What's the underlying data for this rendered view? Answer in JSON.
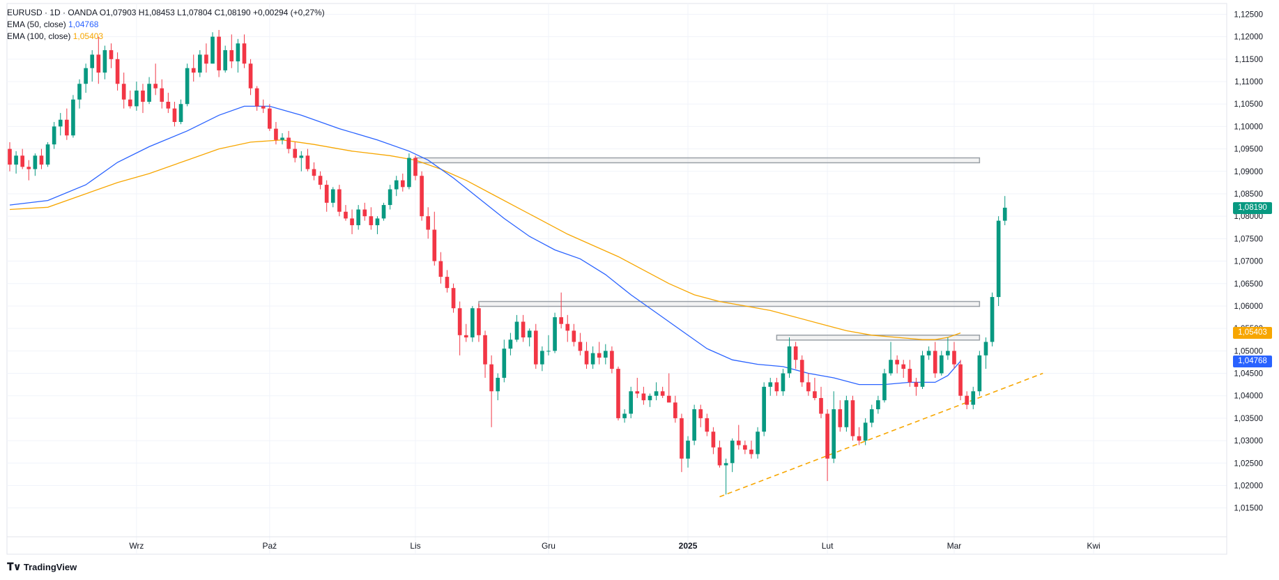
{
  "legend": {
    "symbol_line": "EURUSD · 1D · OANDA",
    "open": "O1,07903",
    "high": "H1,08453",
    "low": "L1,07804",
    "close": "C1,08190",
    "change": "+0,00294 (+0,27%)",
    "ema50_label": "EMA (50, close)",
    "ema50_value": "1,04768",
    "ema100_label": "EMA (100, close)",
    "ema100_value": "1,05403"
  },
  "brand": {
    "name": "TradingView",
    "icon": "tradingview-logo-icon"
  },
  "colors": {
    "up": "#089981",
    "down": "#f23645",
    "ema50": "#2962ff",
    "ema100": "#f7a600",
    "grid": "#f0f3fa"
  },
  "price_tags": {
    "last": {
      "label": "1,08190",
      "color": "#089981"
    },
    "ema100": {
      "label": "1,05403",
      "color": "#f7a600"
    },
    "ema50": {
      "label": "1,04768",
      "color": "#2962ff"
    }
  },
  "chart_data": {
    "type": "candlestick",
    "symbol": "EURUSD",
    "timeframe": "1D",
    "ylim": [
      1.012,
      1.126
    ],
    "y_ticks": [
      "1,12500",
      "1,12000",
      "1,11500",
      "1,11000",
      "1,10500",
      "1,10000",
      "1,09500",
      "1,09000",
      "1,08500",
      "1,08000",
      "1,07500",
      "1,07000",
      "1,06500",
      "1,06000",
      "1,05500",
      "1,05000",
      "1,04500",
      "1,04000",
      "1,03500",
      "1,03000",
      "1,02500",
      "1,02000",
      "1,01500"
    ],
    "x_ticks": [
      {
        "label": "Wrz",
        "index": 20,
        "bold": false
      },
      {
        "label": "Paź",
        "index": 41,
        "bold": false
      },
      {
        "label": "Lis",
        "index": 64,
        "bold": false
      },
      {
        "label": "Gru",
        "index": 85,
        "bold": false
      },
      {
        "label": "2025",
        "index": 107,
        "bold": true
      },
      {
        "label": "Lut",
        "index": 129,
        "bold": false
      },
      {
        "label": "Mar",
        "index": 149,
        "bold": false
      },
      {
        "label": "Kwi",
        "index": 171,
        "bold": false
      }
    ],
    "x_span": 192,
    "candles": [
      [
        1.095,
        1.0965,
        1.09,
        1.0915
      ],
      [
        1.0915,
        1.0945,
        1.0895,
        1.0935
      ],
      [
        1.0935,
        1.095,
        1.0905,
        1.091
      ],
      [
        1.091,
        1.0925,
        1.088,
        1.0905
      ],
      [
        1.0905,
        1.094,
        1.089,
        1.0935
      ],
      [
        1.0935,
        1.095,
        1.0905,
        1.0915
      ],
      [
        1.0915,
        1.0965,
        1.091,
        1.096
      ],
      [
        1.096,
        1.101,
        1.095,
        1.1
      ],
      [
        1.1,
        1.103,
        1.098,
        1.1015
      ],
      [
        1.1015,
        1.104,
        1.097,
        1.098
      ],
      [
        1.098,
        1.107,
        1.0975,
        1.106
      ],
      [
        1.106,
        1.1105,
        1.104,
        1.1095
      ],
      [
        1.1095,
        1.114,
        1.1075,
        1.113
      ],
      [
        1.113,
        1.117,
        1.11,
        1.116
      ],
      [
        1.116,
        1.12,
        1.1095,
        1.112
      ],
      [
        1.112,
        1.118,
        1.1105,
        1.117
      ],
      [
        1.117,
        1.1185,
        1.113,
        1.115
      ],
      [
        1.115,
        1.1165,
        1.108,
        1.1095
      ],
      [
        1.1095,
        1.112,
        1.104,
        1.106
      ],
      [
        1.106,
        1.108,
        1.104,
        1.1045
      ],
      [
        1.1045,
        1.11,
        1.1035,
        1.108
      ],
      [
        1.108,
        1.1095,
        1.103,
        1.1055
      ],
      [
        1.1055,
        1.111,
        1.105,
        1.1095
      ],
      [
        1.1095,
        1.114,
        1.107,
        1.1085
      ],
      [
        1.1085,
        1.1105,
        1.104,
        1.1055
      ],
      [
        1.1055,
        1.1075,
        1.103,
        1.104
      ],
      [
        1.104,
        1.1055,
        1.1,
        1.101
      ],
      [
        1.101,
        1.106,
        1.1005,
        1.105
      ],
      [
        1.105,
        1.114,
        1.1045,
        1.113
      ],
      [
        1.113,
        1.116,
        1.11,
        1.112
      ],
      [
        1.112,
        1.117,
        1.111,
        1.116
      ],
      [
        1.116,
        1.1185,
        1.112,
        1.114
      ],
      [
        1.114,
        1.121,
        1.114,
        1.12
      ],
      [
        1.12,
        1.1215,
        1.111,
        1.1125
      ],
      [
        1.1125,
        1.118,
        1.112,
        1.117
      ],
      [
        1.117,
        1.1205,
        1.113,
        1.1145
      ],
      [
        1.1145,
        1.1195,
        1.112,
        1.1185
      ],
      [
        1.1185,
        1.1205,
        1.113,
        1.114
      ],
      [
        1.114,
        1.115,
        1.107,
        1.1085
      ],
      [
        1.1085,
        1.109,
        1.1035,
        1.1045
      ],
      [
        1.1045,
        1.106,
        1.103,
        1.104
      ],
      [
        1.104,
        1.105,
        1.099,
        1.0995
      ],
      [
        1.0995,
        1.101,
        1.096,
        1.097
      ],
      [
        1.097,
        1.0985,
        1.096,
        1.0975
      ],
      [
        1.0975,
        1.099,
        1.094,
        1.095
      ],
      [
        1.095,
        1.0965,
        1.092,
        1.093
      ],
      [
        1.093,
        1.0945,
        1.09,
        1.0935
      ],
      [
        1.0935,
        1.095,
        1.09,
        1.0905
      ],
      [
        1.0905,
        1.092,
        1.088,
        1.089
      ],
      [
        1.089,
        1.09,
        1.086,
        1.087
      ],
      [
        1.087,
        1.088,
        1.081,
        1.083
      ],
      [
        1.083,
        1.0865,
        1.082,
        1.086
      ],
      [
        1.086,
        1.087,
        1.08,
        1.081
      ],
      [
        1.081,
        1.0825,
        1.079,
        1.0795
      ],
      [
        1.0795,
        1.0815,
        1.076,
        1.078
      ],
      [
        1.078,
        1.0825,
        1.077,
        1.0815
      ],
      [
        1.0815,
        1.083,
        1.079,
        1.08
      ],
      [
        1.08,
        1.082,
        1.077,
        1.078
      ],
      [
        1.078,
        1.08,
        1.076,
        1.0795
      ],
      [
        1.0795,
        1.083,
        1.079,
        1.0825
      ],
      [
        1.0825,
        1.087,
        1.0815,
        1.086
      ],
      [
        1.086,
        1.089,
        1.0845,
        1.088
      ],
      [
        1.088,
        1.0895,
        1.0855,
        1.0865
      ],
      [
        1.0865,
        1.094,
        1.086,
        1.093
      ],
      [
        1.093,
        1.0935,
        1.088,
        1.089
      ],
      [
        1.089,
        1.09,
        1.079,
        1.08
      ],
      [
        1.08,
        1.082,
        1.075,
        1.077
      ],
      [
        1.077,
        1.081,
        1.069,
        1.07
      ],
      [
        1.07,
        1.072,
        1.065,
        1.0665
      ],
      [
        1.0665,
        1.068,
        1.063,
        1.064
      ],
      [
        1.064,
        1.065,
        1.0585,
        1.0595
      ],
      [
        1.0595,
        1.061,
        1.049,
        1.0535
      ],
      [
        1.0535,
        1.056,
        1.052,
        1.053
      ],
      [
        1.053,
        1.06,
        1.052,
        1.0595
      ],
      [
        1.0595,
        1.0605,
        1.052,
        1.0535
      ],
      [
        1.0535,
        1.0545,
        1.044,
        1.047
      ],
      [
        1.047,
        1.049,
        1.033,
        1.041
      ],
      [
        1.041,
        1.045,
        1.039,
        1.044
      ],
      [
        1.044,
        1.0525,
        1.043,
        1.0505
      ],
      [
        1.0505,
        1.054,
        1.049,
        1.0525
      ],
      [
        1.0525,
        1.058,
        1.052,
        1.0565
      ],
      [
        1.0565,
        1.058,
        1.052,
        1.053
      ],
      [
        1.053,
        1.055,
        1.051,
        1.0545
      ],
      [
        1.0545,
        1.056,
        1.046,
        1.047
      ],
      [
        1.047,
        1.051,
        1.0455,
        1.05
      ],
      [
        1.05,
        1.0535,
        1.049,
        1.05
      ],
      [
        1.05,
        1.0585,
        1.0495,
        1.0575
      ],
      [
        1.0575,
        1.063,
        1.055,
        1.056
      ],
      [
        1.056,
        1.058,
        1.052,
        1.0545
      ],
      [
        1.0545,
        1.056,
        1.051,
        1.052
      ],
      [
        1.052,
        1.054,
        1.049,
        1.05
      ],
      [
        1.05,
        1.052,
        1.046,
        1.047
      ],
      [
        1.047,
        1.051,
        1.046,
        1.0495
      ],
      [
        1.0495,
        1.052,
        1.047,
        1.0485
      ],
      [
        1.0485,
        1.0515,
        1.047,
        1.05
      ],
      [
        1.05,
        1.051,
        1.045,
        1.046
      ],
      [
        1.046,
        1.0465,
        1.0345,
        1.035
      ],
      [
        1.035,
        1.037,
        1.034,
        1.036
      ],
      [
        1.036,
        1.042,
        1.035,
        1.041
      ],
      [
        1.041,
        1.044,
        1.0395,
        1.0405
      ],
      [
        1.0405,
        1.042,
        1.038,
        1.039
      ],
      [
        1.039,
        1.0405,
        1.0375,
        1.04
      ],
      [
        1.04,
        1.043,
        1.039,
        1.041
      ],
      [
        1.041,
        1.042,
        1.0395,
        1.04
      ],
      [
        1.04,
        1.045,
        1.0385,
        1.0385
      ],
      [
        1.0385,
        1.04,
        1.034,
        1.035
      ],
      [
        1.035,
        1.036,
        1.023,
        1.026
      ],
      [
        1.026,
        1.031,
        1.024,
        1.03
      ],
      [
        1.03,
        1.038,
        1.029,
        1.037
      ],
      [
        1.037,
        1.038,
        1.033,
        1.035
      ],
      [
        1.035,
        1.036,
        1.031,
        1.032
      ],
      [
        1.032,
        1.033,
        1.027,
        1.0285
      ],
      [
        1.0285,
        1.03,
        1.024,
        1.0245
      ],
      [
        1.0245,
        1.026,
        1.018,
        1.025
      ],
      [
        1.025,
        1.0305,
        1.023,
        1.03
      ],
      [
        1.03,
        1.0335,
        1.028,
        1.029
      ],
      [
        1.029,
        1.03,
        1.027,
        1.028
      ],
      [
        1.028,
        1.03,
        1.026,
        1.027
      ],
      [
        1.027,
        1.033,
        1.026,
        1.032
      ],
      [
        1.032,
        1.043,
        1.031,
        1.042
      ],
      [
        1.042,
        1.044,
        1.04,
        1.043
      ],
      [
        1.043,
        1.044,
        1.04,
        1.041
      ],
      [
        1.041,
        1.046,
        1.04,
        1.045
      ],
      [
        1.045,
        1.053,
        1.044,
        1.051
      ],
      [
        1.051,
        1.052,
        1.046,
        1.048
      ],
      [
        1.048,
        1.049,
        1.042,
        1.043
      ],
      [
        1.043,
        1.045,
        1.04,
        1.041
      ],
      [
        1.041,
        1.044,
        1.039,
        1.0395
      ],
      [
        1.0395,
        1.042,
        1.035,
        1.036
      ],
      [
        1.036,
        1.037,
        1.021,
        1.026
      ],
      [
        1.026,
        1.041,
        1.025,
        1.037
      ],
      [
        1.037,
        1.039,
        1.032,
        1.033
      ],
      [
        1.033,
        1.04,
        1.032,
        1.039
      ],
      [
        1.039,
        1.04,
        1.03,
        1.031
      ],
      [
        1.031,
        1.033,
        1.029,
        1.03
      ],
      [
        1.03,
        1.035,
        1.029,
        1.034
      ],
      [
        1.034,
        1.038,
        1.033,
        1.037
      ],
      [
        1.037,
        1.04,
        1.036,
        1.039
      ],
      [
        1.039,
        1.046,
        1.0385,
        1.045
      ],
      [
        1.045,
        1.052,
        1.0445,
        1.048
      ],
      [
        1.048,
        1.049,
        1.045,
        1.047
      ],
      [
        1.047,
        1.048,
        1.044,
        1.046
      ],
      [
        1.046,
        1.048,
        1.042,
        1.043
      ],
      [
        1.043,
        1.044,
        1.04,
        1.042
      ],
      [
        1.042,
        1.05,
        1.0415,
        1.049
      ],
      [
        1.049,
        1.051,
        1.048,
        1.05
      ],
      [
        1.05,
        1.052,
        1.044,
        1.045
      ],
      [
        1.045,
        1.05,
        1.0445,
        1.049
      ],
      [
        1.049,
        1.053,
        1.048,
        1.05
      ],
      [
        1.05,
        1.052,
        1.046,
        1.047
      ],
      [
        1.047,
        1.048,
        1.039,
        1.04
      ],
      [
        1.04,
        1.041,
        1.037,
        1.038
      ],
      [
        1.038,
        1.042,
        1.037,
        1.041
      ],
      [
        1.041,
        1.05,
        1.04,
        1.049
      ],
      [
        1.049,
        1.053,
        1.046,
        1.052
      ],
      [
        1.052,
        1.063,
        1.051,
        1.062
      ],
      [
        1.062,
        1.08,
        1.06,
        1.079
      ],
      [
        1.079,
        1.0845,
        1.078,
        1.0819
      ]
    ],
    "ema50": [
      [
        0,
        1.0825
      ],
      [
        6,
        1.0835
      ],
      [
        12,
        1.087
      ],
      [
        17,
        1.092
      ],
      [
        22,
        1.0955
      ],
      [
        28,
        1.099
      ],
      [
        33,
        1.1025
      ],
      [
        37,
        1.1045
      ],
      [
        41,
        1.1045
      ],
      [
        46,
        1.1025
      ],
      [
        52,
        1.0995
      ],
      [
        58,
        1.097
      ],
      [
        63,
        1.0945
      ],
      [
        66,
        1.0925
      ],
      [
        70,
        1.0885
      ],
      [
        74,
        1.084
      ],
      [
        78,
        1.0795
      ],
      [
        82,
        1.0755
      ],
      [
        86,
        1.0725
      ],
      [
        90,
        1.0705
      ],
      [
        94,
        1.067
      ],
      [
        98,
        1.0625
      ],
      [
        102,
        1.0585
      ],
      [
        106,
        1.0545
      ],
      [
        110,
        1.0505
      ],
      [
        114,
        1.048
      ],
      [
        118,
        1.047
      ],
      [
        122,
        1.0465
      ],
      [
        126,
        1.045
      ],
      [
        130,
        1.044
      ],
      [
        134,
        1.0425
      ],
      [
        138,
        1.0425
      ],
      [
        142,
        1.043
      ],
      [
        146,
        1.043
      ],
      [
        148,
        1.0445
      ],
      [
        150,
        1.0477
      ]
    ],
    "ema100": [
      [
        0,
        1.0815
      ],
      [
        6,
        1.082
      ],
      [
        12,
        1.085
      ],
      [
        17,
        1.0875
      ],
      [
        22,
        1.0895
      ],
      [
        28,
        1.0925
      ],
      [
        33,
        1.095
      ],
      [
        38,
        1.0965
      ],
      [
        43,
        1.097
      ],
      [
        48,
        1.096
      ],
      [
        54,
        1.0945
      ],
      [
        60,
        1.0935
      ],
      [
        64,
        1.0925
      ],
      [
        68,
        1.0905
      ],
      [
        72,
        1.088
      ],
      [
        76,
        1.085
      ],
      [
        80,
        1.082
      ],
      [
        84,
        1.079
      ],
      [
        88,
        1.076
      ],
      [
        92,
        1.0735
      ],
      [
        96,
        1.071
      ],
      [
        100,
        1.068
      ],
      [
        104,
        1.065
      ],
      [
        108,
        1.0625
      ],
      [
        112,
        1.061
      ],
      [
        116,
        1.06
      ],
      [
        120,
        1.059
      ],
      [
        124,
        1.0575
      ],
      [
        128,
        1.056
      ],
      [
        132,
        1.0545
      ],
      [
        136,
        1.0535
      ],
      [
        140,
        1.053
      ],
      [
        144,
        1.0525
      ],
      [
        146,
        1.0525
      ],
      [
        148,
        1.053
      ],
      [
        150,
        1.054
      ]
    ],
    "zones": [
      {
        "name": "resistance-zone-high",
        "i1": 64,
        "i2": 153,
        "y1": 1.0925,
        "y2": 1.093
      },
      {
        "name": "resistance-zone-mid",
        "i1": 74,
        "i2": 153,
        "y1": 1.06,
        "y2": 1.061
      },
      {
        "name": "resistance-zone-low",
        "i1": 121,
        "i2": 153,
        "y1": 1.0525,
        "y2": 1.0535
      }
    ],
    "trendline": {
      "i1": 112,
      "y1": 1.0175,
      "i2": 163,
      "y2": 1.045,
      "color": "#f7a600",
      "style": "dashed"
    }
  }
}
